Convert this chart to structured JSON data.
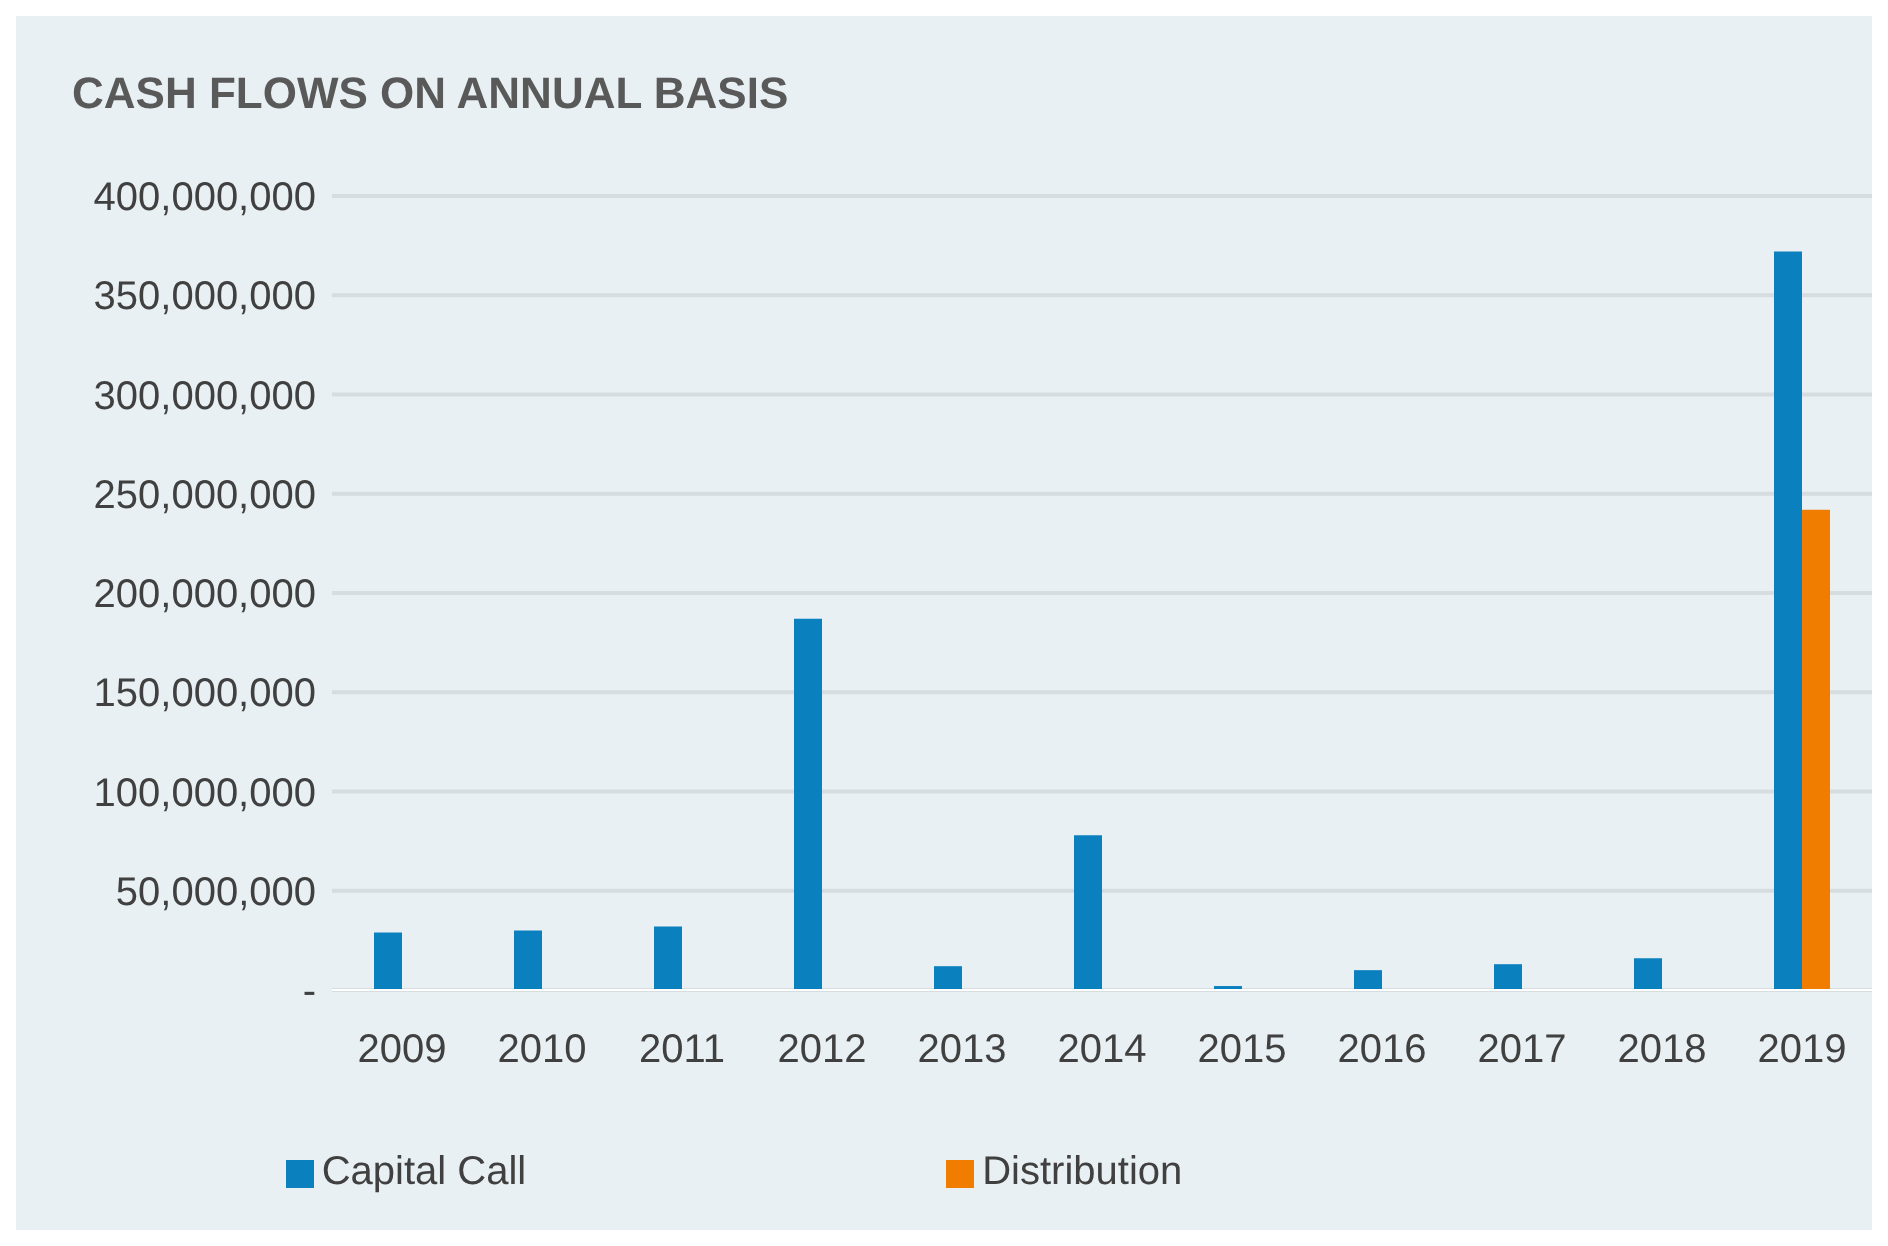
{
  "chart_data": {
    "type": "bar",
    "title": "CASH FLOWS ON ANNUAL BASIS",
    "categories": [
      "2009",
      "2010",
      "2011",
      "2012",
      "2013",
      "2014",
      "2015",
      "2016",
      "2017",
      "2018",
      "2019"
    ],
    "series": [
      {
        "name": "Capital Call",
        "color": "#0b80be",
        "values": [
          29000000,
          30000000,
          32000000,
          187000000,
          12000000,
          78000000,
          2000000,
          10000000,
          13000000,
          16000000,
          372000000
        ]
      },
      {
        "name": "Distribution",
        "color": "#f07c00",
        "values": [
          0,
          0,
          0,
          0,
          0,
          0,
          0,
          0,
          0,
          0,
          242000000
        ]
      }
    ],
    "ylim": [
      0,
      400000000
    ],
    "yticks": [
      {
        "value": 0,
        "label": "-"
      },
      {
        "value": 50000000,
        "label": "50,000,000"
      },
      {
        "value": 100000000,
        "label": "100,000,000"
      },
      {
        "value": 150000000,
        "label": "150,000,000"
      },
      {
        "value": 200000000,
        "label": "200,000,000"
      },
      {
        "value": 250000000,
        "label": "250,000,000"
      },
      {
        "value": 300000000,
        "label": "300,000,000"
      },
      {
        "value": 350000000,
        "label": "350,000,000"
      },
      {
        "value": 400000000,
        "label": "400,000,000"
      }
    ],
    "grid": "y",
    "legend": "bottom"
  }
}
